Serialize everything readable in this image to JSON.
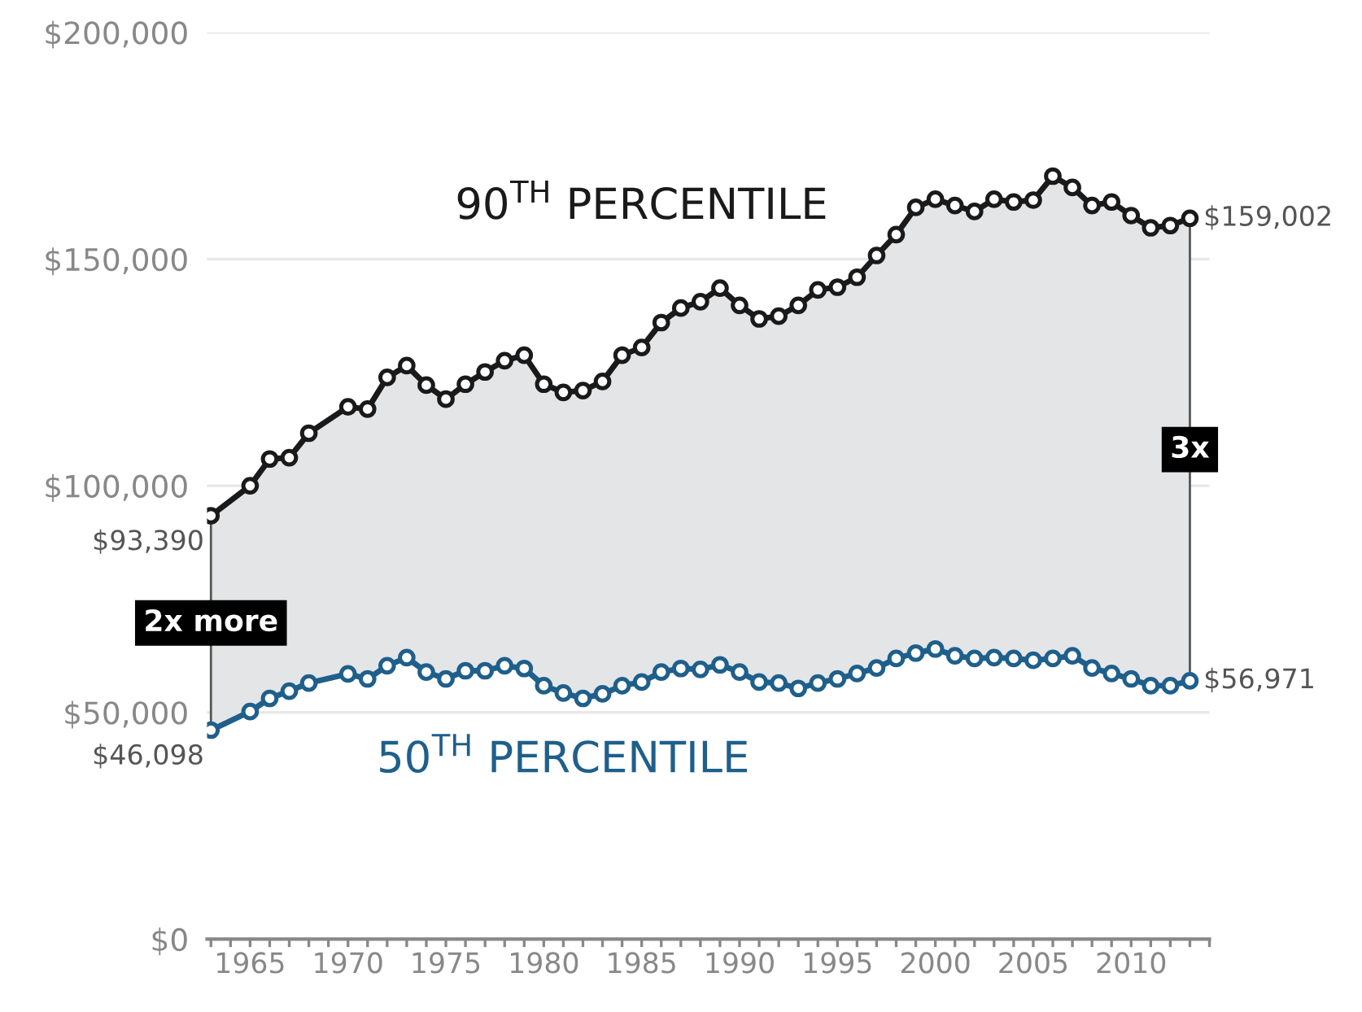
{
  "chart_data": {
    "type": "line",
    "x": [
      1963,
      1965,
      1966,
      1967,
      1968,
      1970,
      1971,
      1972,
      1973,
      1974,
      1975,
      1976,
      1977,
      1978,
      1979,
      1980,
      1981,
      1982,
      1983,
      1984,
      1985,
      1986,
      1987,
      1988,
      1989,
      1990,
      1991,
      1992,
      1993,
      1994,
      1995,
      1996,
      1997,
      1998,
      1999,
      2000,
      2001,
      2002,
      2003,
      2004,
      2005,
      2006,
      2007,
      2008,
      2009,
      2010,
      2011,
      2012,
      2013
    ],
    "series": [
      {
        "name": "90$^{TH}$ PERCENTILE",
        "color": "#1a1a1a",
        "values": [
          93390,
          100000,
          105900,
          106200,
          111600,
          117400,
          116900,
          123900,
          126500,
          122200,
          119100,
          122400,
          125100,
          127600,
          128800,
          122400,
          120600,
          121000,
          123000,
          128800,
          130500,
          136000,
          139200,
          140600,
          143600,
          139800,
          136800,
          137400,
          139800,
          143200,
          143800,
          146000,
          150800,
          155400,
          161400,
          163200,
          161800,
          160500,
          163200,
          162600,
          163000,
          168300,
          165800,
          161800,
          162600,
          159600,
          156900,
          157400,
          159002
        ],
        "value_labels": [
          "$93,390",
          null,
          null,
          null,
          null,
          null,
          null,
          null,
          null,
          null,
          null,
          null,
          null,
          null,
          null,
          null,
          null,
          null,
          null,
          null,
          null,
          null,
          null,
          null,
          null,
          null,
          null,
          null,
          null,
          null,
          null,
          null,
          null,
          null,
          null,
          null,
          null,
          null,
          null,
          null,
          null,
          null,
          null,
          null,
          null,
          null,
          null,
          null,
          "$159,002"
        ]
      },
      {
        "name": "50$^{TH}$ PERCENTILE",
        "color": "#1f5f8b",
        "values": [
          46098,
          50200,
          53100,
          54700,
          56500,
          58500,
          57400,
          60300,
          62100,
          58900,
          57400,
          59200,
          59200,
          60300,
          59700,
          55900,
          54300,
          53100,
          54100,
          55900,
          56700,
          58900,
          59700,
          59500,
          60500,
          58900,
          56700,
          56500,
          55300,
          56500,
          57400,
          58600,
          59800,
          61900,
          63100,
          64000,
          62500,
          61900,
          62100,
          61900,
          61500,
          61900,
          62500,
          59800,
          58600,
          57400,
          55900,
          55900,
          56971
        ],
        "value_labels": [
          "$46,098",
          null,
          null,
          null,
          null,
          null,
          null,
          null,
          null,
          null,
          null,
          null,
          null,
          null,
          null,
          null,
          null,
          null,
          null,
          null,
          null,
          null,
          null,
          null,
          null,
          null,
          null,
          null,
          null,
          null,
          null,
          null,
          null,
          null,
          null,
          null,
          null,
          null,
          null,
          null,
          null,
          null,
          null,
          null,
          null,
          null,
          null,
          null,
          "$56,971"
        ]
      }
    ],
    "annotations": [
      "2x more",
      "3x"
    ],
    "xlim": [
      1962.8,
      2014
    ],
    "xticks": [
      {
        "value": 1963,
        "label": null
      },
      {
        "value": 1964,
        "label": null
      },
      1965,
      {
        "value": 1966,
        "label": null
      },
      {
        "value": 1967,
        "label": null
      },
      {
        "value": 1968,
        "label": null
      },
      {
        "value": 1969,
        "label": null
      },
      1970,
      {
        "value": 1971,
        "label": null
      },
      {
        "value": 1972,
        "label": null
      },
      {
        "value": 1973,
        "label": null
      },
      {
        "value": 1974,
        "label": null
      },
      1975,
      {
        "value": 1976,
        "label": null
      },
      {
        "value": 1977,
        "label": null
      },
      {
        "value": 1978,
        "label": null
      },
      {
        "value": 1979,
        "label": null
      },
      1980,
      {
        "value": 1981,
        "label": null
      },
      {
        "value": 1982,
        "label": null
      },
      {
        "value": 1983,
        "label": null
      },
      {
        "value": 1984,
        "label": null
      },
      1985,
      {
        "value": 1986,
        "label": null
      },
      {
        "value": 1987,
        "label": null
      },
      {
        "value": 1988,
        "label": null
      },
      {
        "value": 1989,
        "label": null
      },
      1990,
      {
        "value": 1991,
        "label": null
      },
      {
        "value": 1992,
        "label": null
      },
      {
        "value": 1993,
        "label": null
      },
      {
        "value": 1994,
        "label": null
      },
      1995,
      {
        "value": 1996,
        "label": null
      },
      {
        "value": 1997,
        "label": null
      },
      {
        "value": 1998,
        "label": null
      },
      {
        "value": 1999,
        "label": null
      },
      2000,
      {
        "value": 2001,
        "label": null
      },
      {
        "value": 2002,
        "label": null
      },
      {
        "value": 2003,
        "label": null
      },
      {
        "value": 2004,
        "label": null
      },
      2005,
      {
        "value": 2006,
        "label": null
      },
      {
        "value": 2007,
        "label": null
      },
      {
        "value": 2008,
        "label": null
      },
      {
        "value": 2009,
        "label": null
      },
      2010,
      {
        "value": 2011,
        "label": null
      },
      {
        "value": 2012,
        "label": null
      },
      {
        "value": 2013,
        "label": null
      },
      {
        "value": 2014,
        "label": null
      }
    ],
    "ylim": [
      0,
      200000
    ],
    "yticks": [
      {
        "value": 0,
        "label": "$0"
      },
      {
        "value": 50000,
        "label": "$50,000"
      },
      {
        "value": 100000,
        "label": "$100,000"
      },
      {
        "value": 150000,
        "label": "$150,000"
      },
      {
        "value": 200000,
        "label": "$200,000"
      }
    ],
    "grid": "y",
    "legend": false,
    "marker": "circle",
    "line_style": "solid"
  }
}
